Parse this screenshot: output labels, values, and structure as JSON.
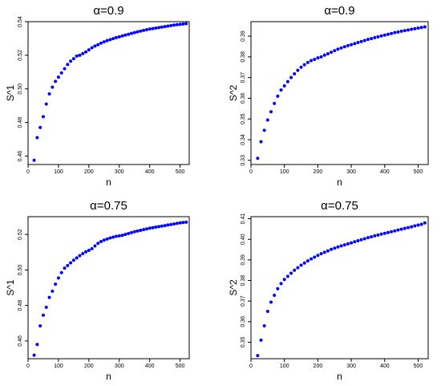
{
  "chart_data": [
    {
      "type": "scatter",
      "title": "α=0.9",
      "xlabel": "n",
      "ylabel": "S^1",
      "xlim": [
        0,
        530
      ],
      "ylim": [
        0.455,
        0.54
      ],
      "xticks": [
        0,
        100,
        200,
        300,
        400,
        500
      ],
      "xtick_labels": [
        "0",
        "100",
        "200",
        "300",
        "400",
        "500"
      ],
      "yticks": [
        0.46,
        0.48,
        0.5,
        0.52,
        0.54
      ],
      "ytick_labels": [
        "0.46",
        "0.48",
        "0.50",
        "0.52",
        "0.54"
      ],
      "grid": false,
      "color": "#0000ff",
      "series": [
        {
          "x": [
            20,
            30,
            40,
            50,
            60,
            70,
            80,
            90,
            100,
            110,
            120,
            130,
            140,
            150,
            160,
            170,
            180,
            190,
            200,
            210,
            220,
            230,
            240,
            250,
            260,
            270,
            280,
            290,
            300,
            310,
            320,
            330,
            340,
            350,
            360,
            370,
            380,
            390,
            400,
            410,
            420,
            430,
            440,
            450,
            460,
            470,
            480,
            490,
            500,
            510,
            520
          ],
          "y": [
            0.4575,
            0.471,
            0.477,
            0.4835,
            0.491,
            0.497,
            0.501,
            0.5045,
            0.507,
            0.5095,
            0.512,
            0.5145,
            0.5165,
            0.518,
            0.5195,
            0.52,
            0.521,
            0.522,
            0.5232,
            0.5245,
            0.5255,
            0.5263,
            0.5272,
            0.528,
            0.5287,
            0.5293,
            0.5299,
            0.5305,
            0.531,
            0.5315,
            0.532,
            0.5325,
            0.533,
            0.5335,
            0.534,
            0.5344,
            0.5348,
            0.5352,
            0.5356,
            0.5359,
            0.5362,
            0.5365,
            0.5368,
            0.5371,
            0.5374,
            0.5377,
            0.538,
            0.5382,
            0.5384,
            0.5386,
            0.5388
          ]
        }
      ]
    },
    {
      "type": "scatter",
      "title": "α=0.9",
      "xlabel": "n",
      "ylabel": "S^2",
      "xlim": [
        0,
        530
      ],
      "ylim": [
        0.328,
        0.397
      ],
      "xticks": [
        0,
        100,
        200,
        300,
        400,
        500
      ],
      "xtick_labels": [
        "0",
        "100",
        "200",
        "300",
        "400",
        "500"
      ],
      "yticks": [
        0.33,
        0.34,
        0.35,
        0.36,
        0.37,
        0.38,
        0.39
      ],
      "ytick_labels": [
        "0.33",
        "0.34",
        "0.35",
        "0.36",
        "0.37",
        "0.38",
        "0.39"
      ],
      "grid": false,
      "color": "#0000ff",
      "series": [
        {
          "x": [
            20,
            30,
            40,
            50,
            60,
            70,
            80,
            90,
            100,
            110,
            120,
            130,
            140,
            150,
            160,
            170,
            180,
            190,
            200,
            210,
            220,
            230,
            240,
            250,
            260,
            270,
            280,
            290,
            300,
            310,
            320,
            330,
            340,
            350,
            360,
            370,
            380,
            390,
            400,
            410,
            420,
            430,
            440,
            450,
            460,
            470,
            480,
            490,
            500,
            510,
            520
          ],
          "y": [
            0.331,
            0.339,
            0.3445,
            0.3495,
            0.3535,
            0.3575,
            0.361,
            0.364,
            0.366,
            0.368,
            0.37,
            0.3718,
            0.3735,
            0.375,
            0.3762,
            0.3773,
            0.3782,
            0.3788,
            0.3795,
            0.38,
            0.3808,
            0.3815,
            0.3822,
            0.383,
            0.3837,
            0.3843,
            0.3849,
            0.3854,
            0.3859,
            0.3864,
            0.3869,
            0.3874,
            0.3879,
            0.3884,
            0.3888,
            0.3893,
            0.3897,
            0.3901,
            0.3905,
            0.3909,
            0.3913,
            0.3917,
            0.392,
            0.3924,
            0.3927,
            0.393,
            0.3933,
            0.3936,
            0.3939,
            0.3942,
            0.3945
          ]
        }
      ]
    },
    {
      "type": "scatter",
      "title": "α=0.75",
      "xlabel": "n",
      "ylabel": "S^1",
      "xlim": [
        0,
        530
      ],
      "ylim": [
        0.45,
        0.53
      ],
      "xticks": [
        0,
        100,
        200,
        300,
        400,
        500
      ],
      "xtick_labels": [
        "0",
        "100",
        "200",
        "300",
        "400",
        "500"
      ],
      "yticks": [
        0.46,
        0.48,
        0.5,
        0.52
      ],
      "ytick_labels": [
        "0.46",
        "0.48",
        "0.50",
        "0.52"
      ],
      "grid": false,
      "color": "#0000ff",
      "series": [
        {
          "x": [
            20,
            30,
            40,
            50,
            60,
            70,
            80,
            90,
            100,
            110,
            120,
            130,
            140,
            150,
            160,
            170,
            180,
            190,
            200,
            210,
            220,
            230,
            240,
            250,
            260,
            270,
            280,
            290,
            300,
            310,
            320,
            330,
            340,
            350,
            360,
            370,
            380,
            390,
            400,
            410,
            420,
            430,
            440,
            450,
            460,
            470,
            480,
            490,
            500,
            510,
            520
          ],
          "y": [
            0.452,
            0.458,
            0.4685,
            0.4745,
            0.479,
            0.4845,
            0.488,
            0.492,
            0.4955,
            0.4985,
            0.501,
            0.5025,
            0.504,
            0.5055,
            0.5068,
            0.508,
            0.5092,
            0.5102,
            0.511,
            0.512,
            0.5135,
            0.515,
            0.516,
            0.5168,
            0.5174,
            0.518,
            0.5185,
            0.5189,
            0.5192,
            0.5195,
            0.52,
            0.5205,
            0.521,
            0.5215,
            0.5219,
            0.5223,
            0.5227,
            0.5231,
            0.5235,
            0.5238,
            0.5241,
            0.5244,
            0.5247,
            0.525,
            0.5253,
            0.5256,
            0.5259,
            0.5262,
            0.5265,
            0.5267,
            0.5269
          ]
        }
      ]
    },
    {
      "type": "scatter",
      "title": "α=0.75",
      "xlabel": "n",
      "ylabel": "S^2",
      "xlim": [
        0,
        530
      ],
      "ylim": [
        0.342,
        0.411
      ],
      "xticks": [
        0,
        100,
        200,
        300,
        400,
        500
      ],
      "xtick_labels": [
        "0",
        "100",
        "200",
        "300",
        "400",
        "500"
      ],
      "yticks": [
        0.35,
        0.36,
        0.37,
        0.38,
        0.39,
        0.4,
        0.41
      ],
      "ytick_labels": [
        "0.35",
        "0.36",
        "0.37",
        "0.38",
        "0.39",
        "0.40",
        "0.41"
      ],
      "grid": false,
      "color": "#0000ff",
      "series": [
        {
          "x": [
            20,
            30,
            40,
            50,
            60,
            70,
            80,
            90,
            100,
            110,
            120,
            130,
            140,
            150,
            160,
            170,
            180,
            190,
            200,
            210,
            220,
            230,
            240,
            250,
            260,
            270,
            280,
            290,
            300,
            310,
            320,
            330,
            340,
            350,
            360,
            370,
            380,
            390,
            400,
            410,
            420,
            430,
            440,
            450,
            460,
            470,
            480,
            490,
            500,
            510,
            520
          ],
          "y": [
            0.3435,
            0.351,
            0.358,
            0.365,
            0.3695,
            0.3728,
            0.376,
            0.3785,
            0.3805,
            0.382,
            0.3835,
            0.385,
            0.3862,
            0.3874,
            0.3885,
            0.3895,
            0.3905,
            0.3913,
            0.3922,
            0.393,
            0.3937,
            0.3944,
            0.3951,
            0.3957,
            0.3963,
            0.3968,
            0.3973,
            0.3978,
            0.3983,
            0.3988,
            0.3993,
            0.3998,
            0.4003,
            0.4008,
            0.4012,
            0.4017,
            0.4021,
            0.4025,
            0.4029,
            0.4033,
            0.4037,
            0.4041,
            0.4045,
            0.4049,
            0.4053,
            0.4057,
            0.4061,
            0.4065,
            0.4069,
            0.4073,
            0.408
          ]
        }
      ]
    }
  ]
}
